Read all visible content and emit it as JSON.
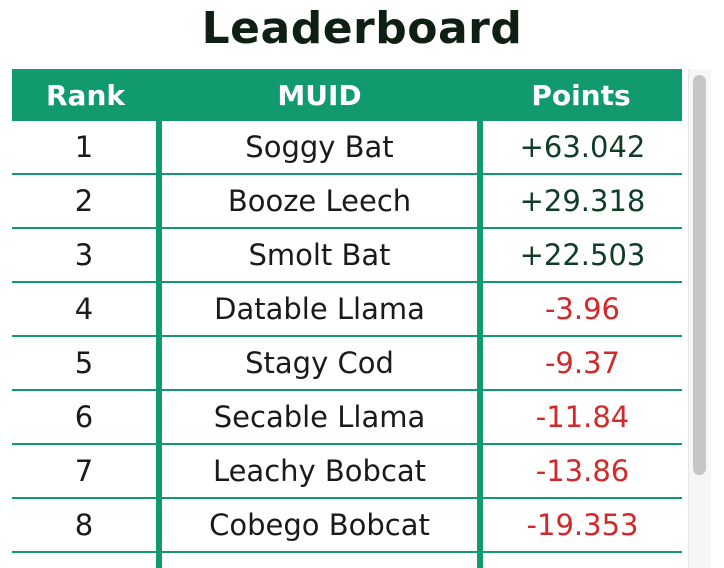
{
  "title": "Leaderboard",
  "columns": {
    "rank": "Rank",
    "muid": "MUID",
    "points": "Points"
  },
  "rows": [
    {
      "rank": "1",
      "muid": "Soggy Bat",
      "points": "+63.042",
      "sign": "positive"
    },
    {
      "rank": "2",
      "muid": "Booze Leech",
      "points": "+29.318",
      "sign": "positive"
    },
    {
      "rank": "3",
      "muid": "Smolt Bat",
      "points": "+22.503",
      "sign": "positive"
    },
    {
      "rank": "4",
      "muid": "Datable Llama",
      "points": "-3.96",
      "sign": "negative"
    },
    {
      "rank": "5",
      "muid": "Stagy Cod",
      "points": "-9.37",
      "sign": "negative"
    },
    {
      "rank": "6",
      "muid": "Secable Llama",
      "points": "-11.84",
      "sign": "negative"
    },
    {
      "rank": "7",
      "muid": "Leachy Bobcat",
      "points": "-13.86",
      "sign": "negative"
    },
    {
      "rank": "8",
      "muid": "Cobego Bobcat",
      "points": "-19.353",
      "sign": "negative"
    }
  ],
  "colors": {
    "header_bg": "#119a6e",
    "positive": "#0f3d26",
    "negative": "#d22a2a"
  }
}
